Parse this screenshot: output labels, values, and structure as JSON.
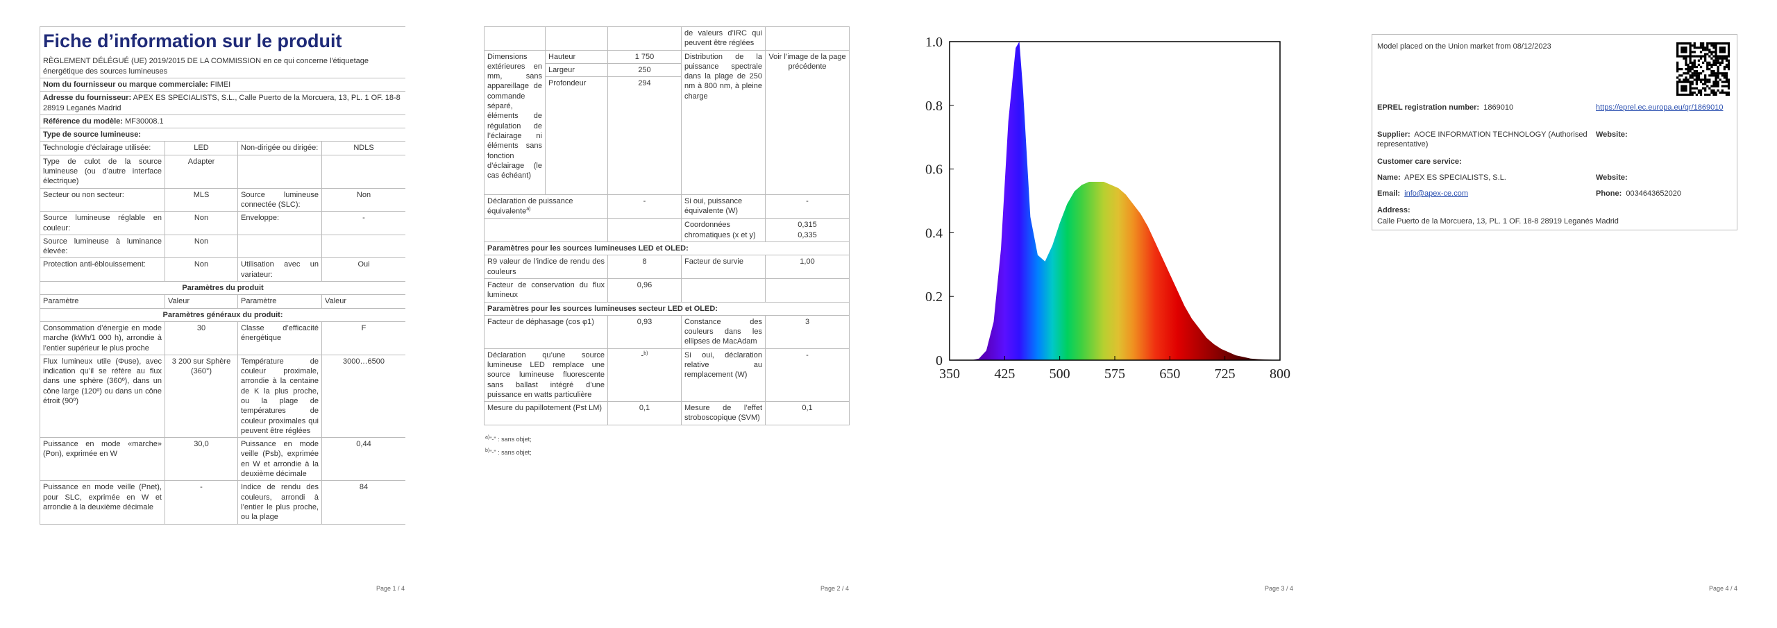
{
  "page1": {
    "title": "Fiche d’information sur le produit",
    "subtitle": "RÈGLEMENT DÉLÉGUÉ (UE) 2019/2015 DE LA COMMISSION en ce qui concerne l'étiquetage énergétique des sources lumineuses",
    "supplier": {
      "label": "Nom du fournisseur ou marque commerciale:",
      "value": "FIMEI"
    },
    "address": {
      "label": "Adresse du fournisseur:",
      "value": "APEX ES SPECIALISTS, S.L., Calle Puerto de la Morcuera, 13, PL. 1 OF. 18-8 28919 Leganés Madrid"
    },
    "model": {
      "label": "Référence du modèle:",
      "value": "MF30008.1"
    },
    "type_heading": "Type de source lumineuse:",
    "type_rows": [
      [
        "Technologie d’éclairage utilisée:",
        "LED",
        "Non-dirigée ou dirigée:",
        "NDLS"
      ],
      [
        "Type de culot de la source lumineuse (ou d’autre interface électrique)",
        "Adapter",
        null,
        null
      ],
      [
        "Secteur ou non secteur:",
        "MLS",
        "Source lumineuse connectée (SLC):",
        "Non"
      ],
      [
        "Source lumineuse réglable en couleur:",
        "Non",
        "Enveloppe:",
        "-"
      ],
      [
        "Source lumineuse à luminance élevée:",
        "Non",
        null,
        null
      ],
      [
        "Protection anti-éblouissement:",
        "Non",
        "Utilisation avec un variateur:",
        "Oui"
      ]
    ],
    "params_heading": "Paramètres du produit",
    "columns": [
      "Paramètre",
      "Valeur",
      "Paramètre",
      "Valeur"
    ],
    "general_heading": "Paramètres généraux du produit:",
    "general_rows": [
      [
        "Consommation d’énergie en mode marche (kWh/1 000 h), arrondie à l’entier supérieur le plus proche",
        "30",
        "Classe d’efficacité énergétique",
        "F"
      ],
      [
        "Flux lumineux utile (Φuse), avec indication qu’il se réfère au flux dans une sphère (360º), dans un cône large (120º) ou dans un cône étroit (90º)",
        "3 200 sur Sphère (360°)",
        "Température de couleur proximale, arrondie à la centaine de K la plus proche, ou la plage de températures de couleur proximales qui peuvent être réglées",
        "3000…6500"
      ],
      [
        "Puissance en mode «marche» (Pon), exprimée en W",
        "30,0",
        "Puissance en mode veille (Psb), exprimée en W et arrondie à la deuxième décimale",
        "0,44"
      ],
      [
        "Puissance en mode veille (Pnet), pour SLC, exprimée en W et arrondie à la deuxième décimale",
        "-",
        "Indice de rendu des couleurs, arrondi à l’entier le plus proche, ou la plage",
        "84"
      ]
    ],
    "footer": "Page 1 / 4"
  },
  "page2": {
    "continued": "de valeurs d’IRC qui peuvent être réglées",
    "dimensions": {
      "label": "Dimensions extérieures en mm, sans appareillage de commande séparé, éléments de régulation de l’éclairage ni éléments sans fonction d’éclairage (le cas échéant)",
      "items": [
        [
          "Hauteur",
          "1 750"
        ],
        [
          "Largeur",
          "250"
        ],
        [
          "Profondeur",
          "294"
        ]
      ],
      "spd_label": "Distribution de la puissance spectrale dans la plage de 250 nm à 800 nm, à pleine charge",
      "spd_value": "Voir l’image de la page précédente"
    },
    "equivalent": {
      "label": "Déclaration de puissance équivalente",
      "note": "a)",
      "value": "-",
      "label2": "Si oui, puissance équivalente (W)",
      "value2": "-"
    },
    "chromaticity": {
      "label": "Coordonnées chromatiques (x et y)",
      "values": [
        "0,315",
        "0,335"
      ]
    },
    "led_heading": "Paramètres pour les sources lumineuses LED et OLED:",
    "led_rows": [
      [
        "R9 valeur de l’indice de rendu des couleurs",
        "8",
        "Facteur de survie",
        "1,00"
      ],
      [
        "Facteur de conservation du flux lumineux",
        "0,96",
        null,
        null
      ]
    ],
    "mains_heading": "Paramètres pour les sources lumineuses secteur LED et OLED:",
    "mains_rows": [
      [
        "Facteur de déphasage (cos φ1)",
        "0,93",
        "Constance des couleurs dans les ellipses de MacAdam",
        "3"
      ]
    ],
    "replacement": {
      "label": "Déclaration qu’une source lumineuse LED remplace une source lumineuse fluorescente sans ballast intégré d’une puissance en watts particulière",
      "value": "-",
      "note": "b)",
      "label2": "Si oui, déclaration relative au remplacement (W)",
      "value2": "-"
    },
    "flicker": [
      "Mesure du papillotement (Pst LM)",
      "0,1",
      "Mesure de l’effet stroboscopique (SVM)",
      "0,1"
    ],
    "notes": [
      {
        "mark": "a)",
        "text": "\"-\" : sans objet;"
      },
      {
        "mark": "b)",
        "text": "\"-\" : sans objet;"
      }
    ],
    "footer": "Page 2 / 4"
  },
  "chart_data": {
    "type": "area",
    "x": [
      350,
      360,
      370,
      380,
      390,
      400,
      410,
      420,
      430,
      440,
      445,
      450,
      460,
      470,
      480,
      490,
      500,
      510,
      520,
      530,
      540,
      550,
      560,
      570,
      580,
      590,
      600,
      610,
      620,
      630,
      640,
      650,
      660,
      670,
      680,
      690,
      700,
      710,
      720,
      730,
      740,
      750,
      760,
      770,
      780,
      790,
      800
    ],
    "values": [
      0,
      0,
      0,
      0,
      0.005,
      0.03,
      0.12,
      0.35,
      0.75,
      0.98,
      1.0,
      0.85,
      0.45,
      0.33,
      0.31,
      0.36,
      0.43,
      0.49,
      0.53,
      0.55,
      0.56,
      0.56,
      0.56,
      0.55,
      0.54,
      0.52,
      0.49,
      0.46,
      0.42,
      0.37,
      0.32,
      0.27,
      0.22,
      0.17,
      0.13,
      0.1,
      0.07,
      0.05,
      0.035,
      0.025,
      0.015,
      0.01,
      0.005,
      0.003,
      0.002,
      0.001,
      0
    ],
    "xlim": [
      350,
      800
    ],
    "ylim": [
      0,
      1
    ],
    "xticks": [
      350,
      425,
      500,
      575,
      650,
      725,
      800
    ],
    "yticks": [
      0,
      0.2,
      0.4,
      0.6,
      0.8,
      {
        "value": 1,
        "label": "1.0"
      }
    ]
  },
  "page3": {
    "footer": "Page 3 / 4"
  },
  "page4": {
    "market": "Model placed on the Union market from 08/12/2023",
    "eprel": {
      "label": "EPREL registration number:",
      "value": "1869010",
      "link": "https://eprel.ec.europa.eu/qr/1869010"
    },
    "supplier": {
      "label": "Supplier:",
      "value": "AOCE INFORMATION TECHNOLOGY (Authorised representative)"
    },
    "supplier_website": "Website:",
    "care": "Customer care service:",
    "name": {
      "label": "Name:",
      "value": "APEX ES SPECIALISTS, S.L."
    },
    "care_website": "Website:",
    "email": {
      "label": "Email:",
      "value": "info@apex-ce.com"
    },
    "phone": {
      "label": "Phone:",
      "value": "0034643652020"
    },
    "address": {
      "label": "Address:",
      "value": "Calle Puerto de la Morcuera, 13, PL. 1 OF. 18-8 28919 Leganés Madrid"
    },
    "footer": "Page 4 / 4"
  }
}
